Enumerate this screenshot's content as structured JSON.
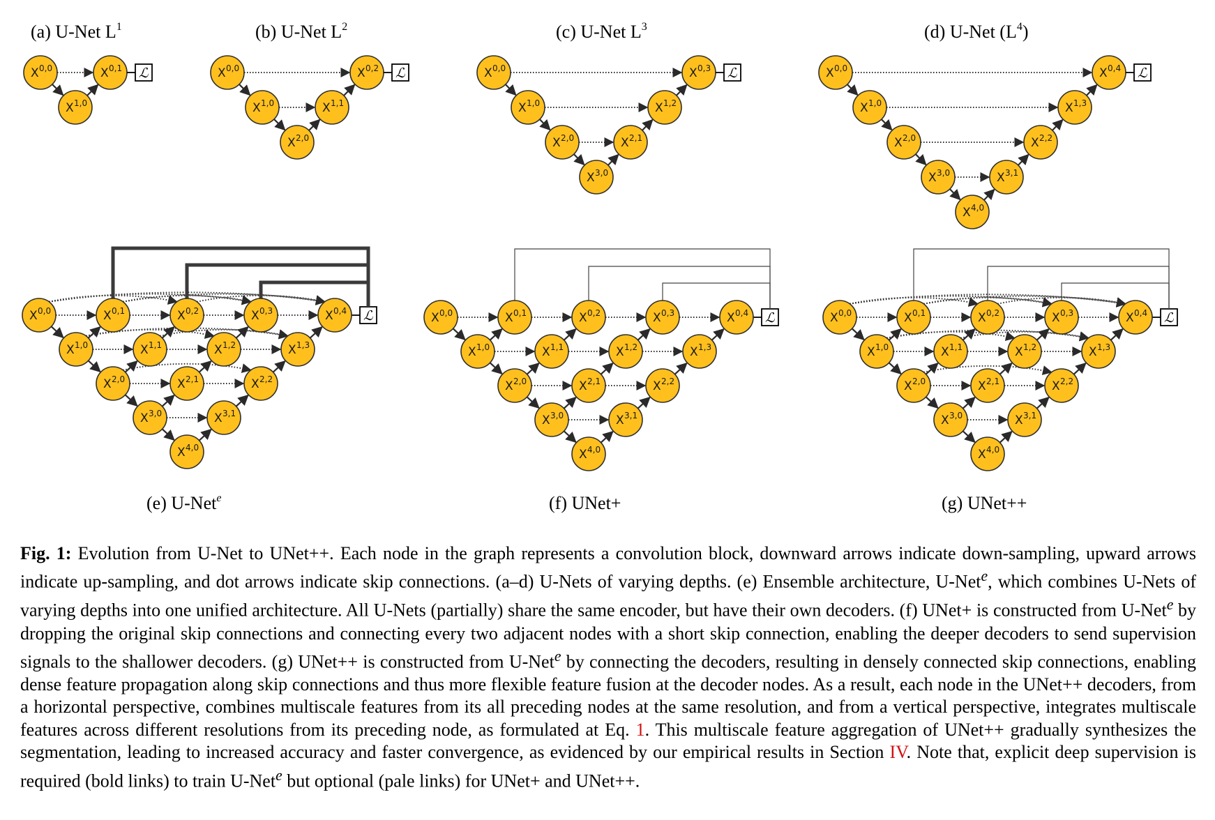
{
  "figure": {
    "node_color": "#FFC01E",
    "loss_symbol": "ℒ",
    "panels": [
      {
        "id": "a",
        "label_main": "(a) U-Net L",
        "label_sup": "1",
        "label_end": "",
        "nodes": [
          "0,0",
          "1,0",
          "0,1"
        ]
      },
      {
        "id": "b",
        "label_main": "(b) U-Net L",
        "label_sup": "2",
        "label_end": "",
        "nodes": [
          "0,0",
          "1,0",
          "2,0",
          "1,1",
          "0,2"
        ]
      },
      {
        "id": "c",
        "label_main": "(c) U-Net L",
        "label_sup": "3",
        "label_end": "",
        "nodes": [
          "0,0",
          "1,0",
          "2,0",
          "3,0",
          "2,1",
          "1,2",
          "0,3"
        ]
      },
      {
        "id": "d",
        "label_main": "(d) U-Net (L",
        "label_sup": "4",
        "label_end": ")",
        "nodes": [
          "0,0",
          "1,0",
          "2,0",
          "3,0",
          "4,0",
          "3,1",
          "2,2",
          "1,3",
          "0,4"
        ]
      },
      {
        "id": "e",
        "label_main": "(e) U-Net",
        "label_sup": "e",
        "label_end": "",
        "nodes": [
          "0,0",
          "1,0",
          "2,0",
          "3,0",
          "4,0",
          "0,1",
          "1,1",
          "2,1",
          "3,1",
          "0,2",
          "1,2",
          "2,2",
          "0,3",
          "1,3",
          "0,4"
        ]
      },
      {
        "id": "f",
        "label_main": "(f) UNet+",
        "label_sup": "",
        "label_end": "",
        "nodes": [
          "0,0",
          "1,0",
          "2,0",
          "3,0",
          "4,0",
          "0,1",
          "1,1",
          "2,1",
          "3,1",
          "0,2",
          "1,2",
          "2,2",
          "0,3",
          "1,3",
          "0,4"
        ]
      },
      {
        "id": "g",
        "label_main": "(g) UNet++",
        "label_sup": "",
        "label_end": "",
        "nodes": [
          "0,0",
          "1,0",
          "2,0",
          "3,0",
          "4,0",
          "0,1",
          "1,1",
          "2,1",
          "3,1",
          "0,2",
          "1,2",
          "2,2",
          "0,3",
          "1,3",
          "0,4"
        ]
      }
    ]
  },
  "caption": {
    "label": "Fig. 1:",
    "t1": " Evolution from U-Net to UNet++. Each node in the graph represents a convolution block, downward arrows indicate down-sampling, upward arrows indicate up-sampling, and dot arrows indicate skip connections. (a–d) U-Nets of varying depths. (e) Ensemble architecture, U-Net",
    "sup1": "e",
    "t2": ", which combines U-Nets of varying depths into one unified architecture. All U-Nets (partially) share the same encoder, but have their own decoders. (f) UNet+ is constructed from U-Net",
    "sup2": "e",
    "t3": " by dropping the original skip connections and connecting every two adjacent nodes with a short skip connection, enabling the deeper decoders to send supervision signals to the shallower decoders. (g) UNet++ is constructed from U-Net",
    "sup3": "e",
    "t4": " by connecting the decoders, resulting in densely connected skip connections, enabling dense feature propagation along skip connections and thus more flexible feature fusion at the decoder nodes. As a result, each node in the UNet++ decoders, from a horizontal perspective, combines multiscale features from its all preceding nodes at the same resolution, and from a vertical perspective, integrates multiscale features across different resolutions from its preceding node, as formulated at Eq. ",
    "ref1": "1",
    "t5": ". This multiscale feature aggregation of UNet++ gradually synthesizes the segmentation, leading to increased accuracy and faster convergence, as evidenced by our empirical results in Section ",
    "ref2": "IV",
    "t6": ". Note that, explicit deep supervision is required (bold links) to train U-Net",
    "sup4": "e",
    "t7": " but optional (pale links) for UNet+ and UNet++."
  }
}
